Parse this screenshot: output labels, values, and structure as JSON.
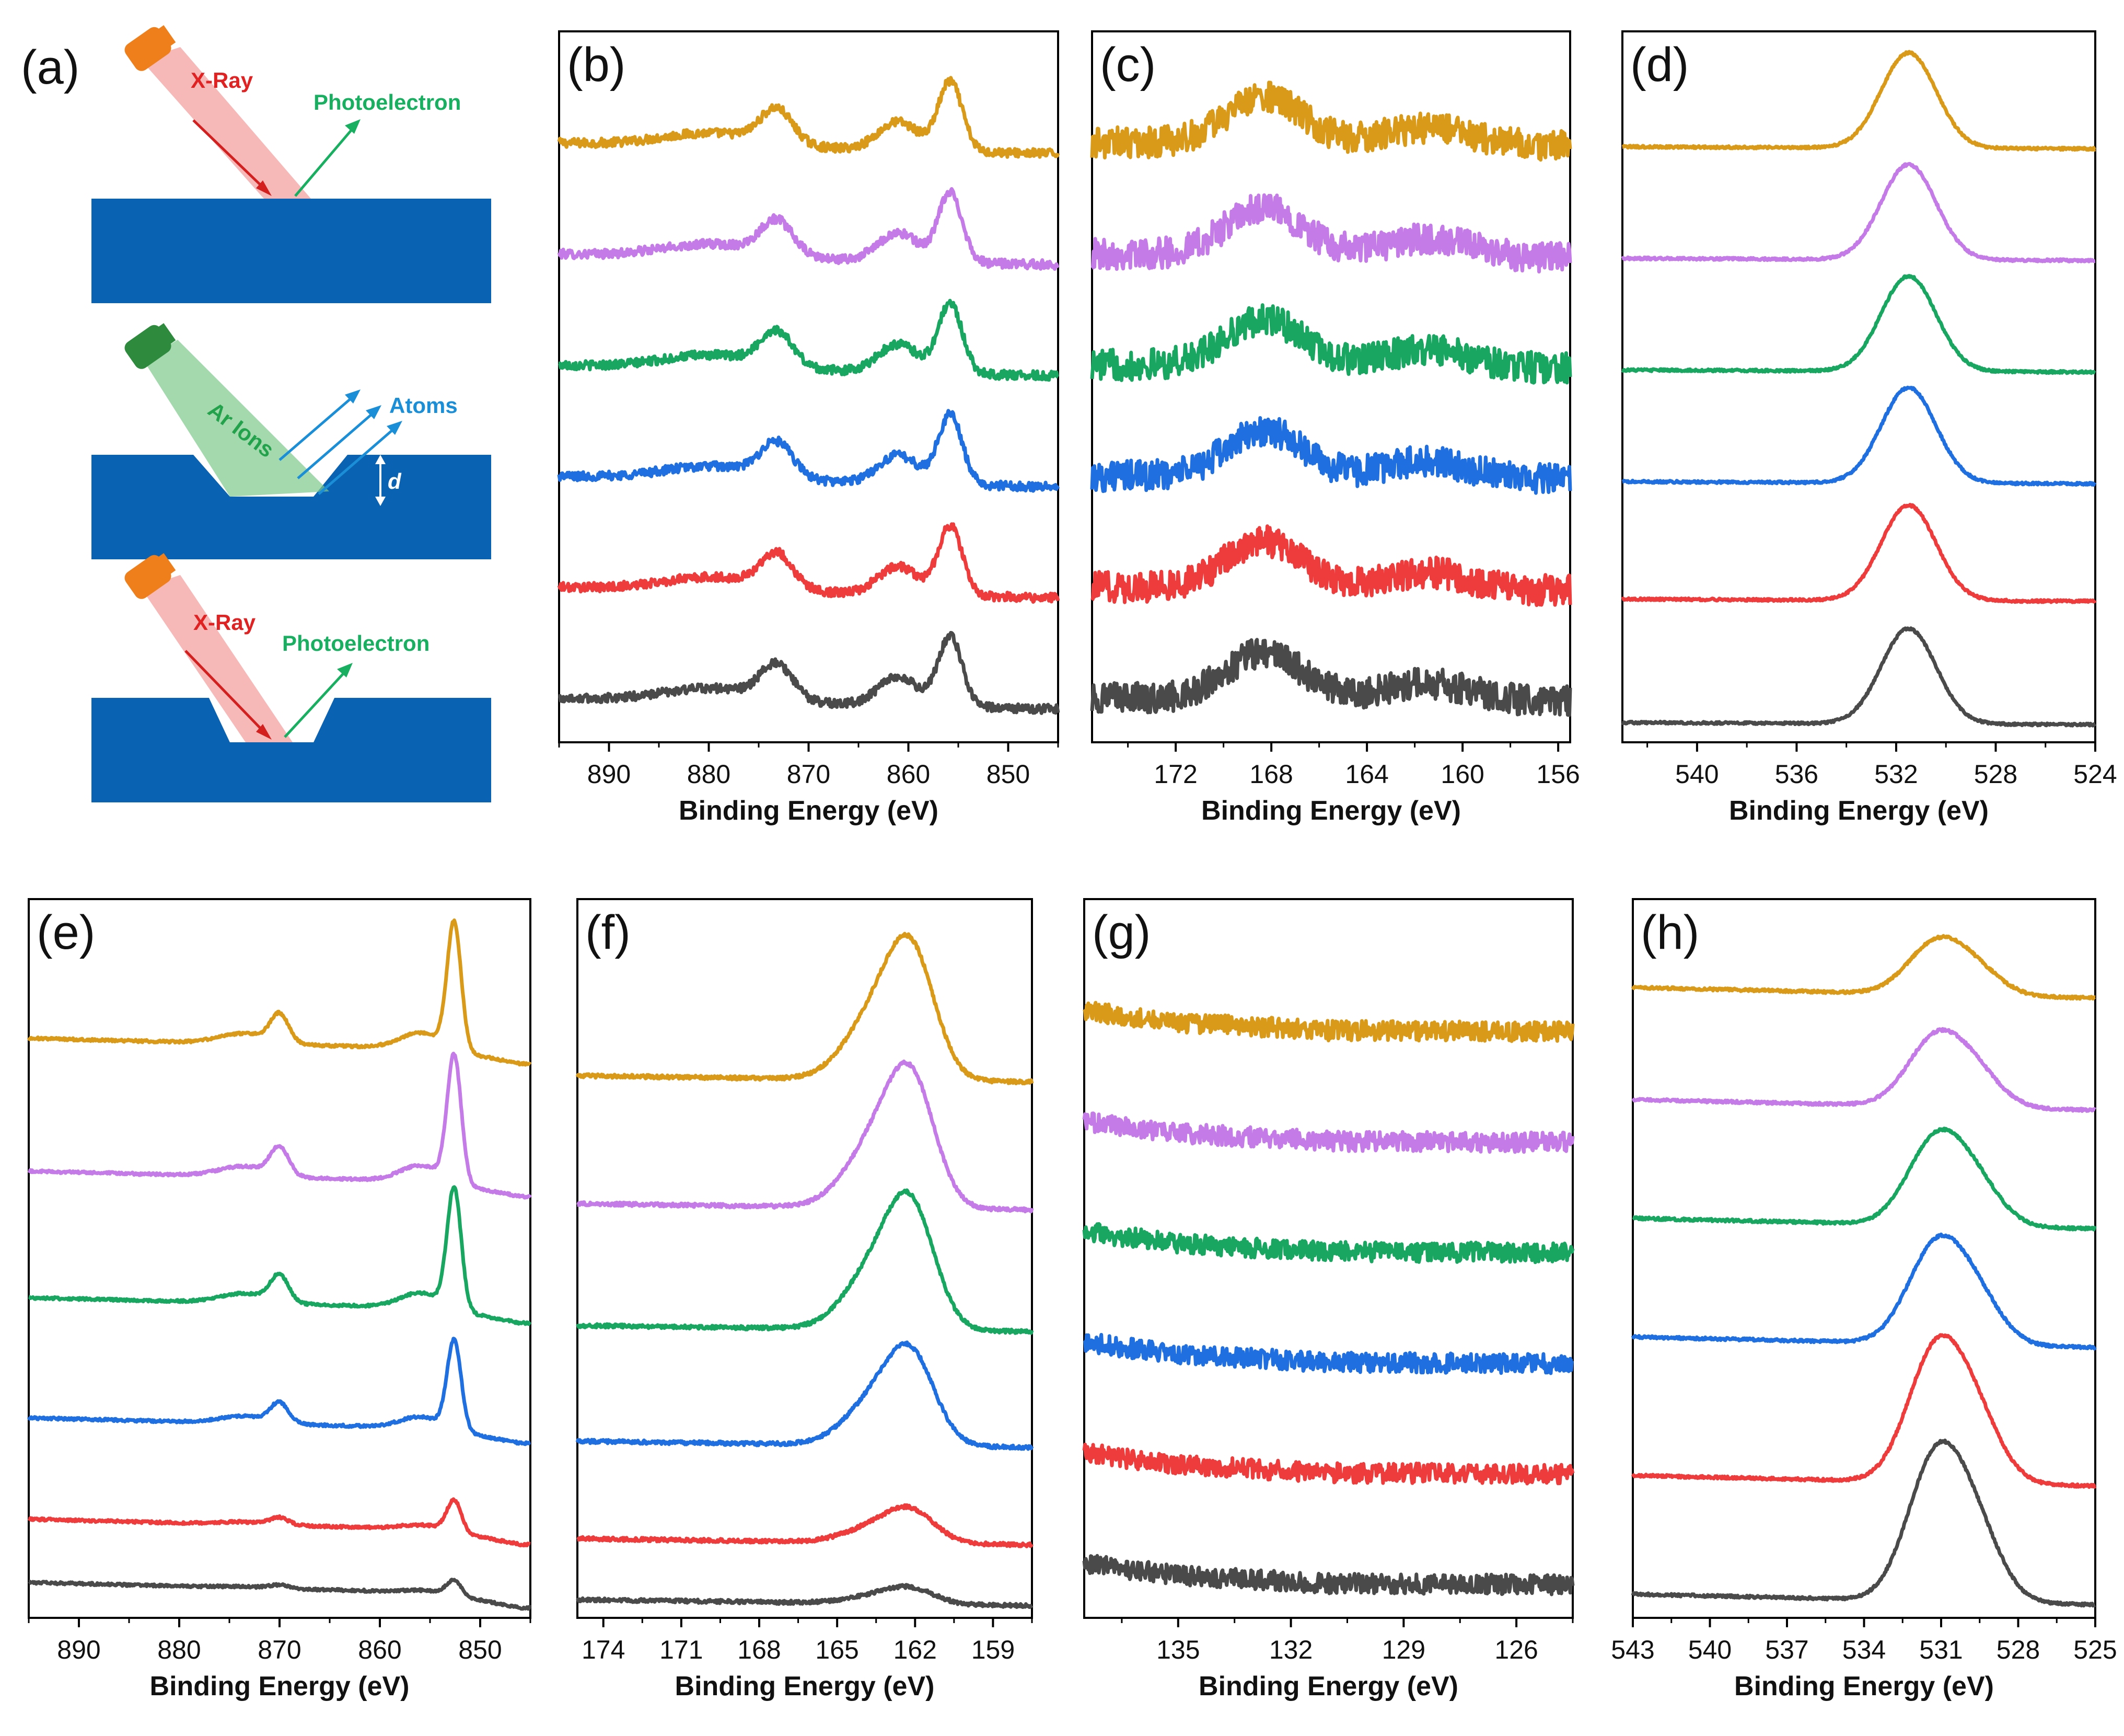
{
  "panel_a": {
    "label": "(a)",
    "xray_label_1": "X-Ray",
    "photoelectron_label_1": "Photoelectron",
    "ar_ions_label": "Ar Ions",
    "atoms_label": "Atoms",
    "depth_label": "d",
    "xray_label_2": "X-Ray",
    "photoelectron_label_2": "Photoelectron"
  },
  "colors": {
    "series": [
      "#d99a1a",
      "#c47be8",
      "#18a660",
      "#1f6fe0",
      "#ee3c3c",
      "#4a4a4a"
    ],
    "substrate": "#0a62b2",
    "xray": "#ee3030",
    "photoelectron": "#18b060",
    "ar_ions": "#2e8b3e",
    "atoms": "#1a8fd8"
  },
  "series_names": [
    "orange",
    "purple",
    "green",
    "blue",
    "red",
    "gray"
  ],
  "chart_data": [
    {
      "id": "b",
      "label": "(b)",
      "type": "line",
      "xlabel": "Binding Energy (eV)",
      "ylabel": "",
      "xlim": [
        895,
        845
      ],
      "xticks": [
        890,
        880,
        870,
        860,
        850
      ],
      "offsets": [
        5,
        4,
        3,
        2,
        1,
        0
      ],
      "amp": 0.8,
      "noise": 0.04,
      "ylim": [
        -0.3,
        6.1
      ],
      "baseline": [
        {
          "x": 895,
          "y": 0.12
        },
        {
          "x": 846,
          "y": 0.0
        }
      ],
      "peaks": [
        {
          "center": 879.5,
          "height": 0.15,
          "width": 5
        },
        {
          "center": 873.2,
          "height": 0.38,
          "width": 1.6
        },
        {
          "center": 861.0,
          "height": 0.32,
          "width": 2.0
        },
        {
          "center": 855.8,
          "height": 0.78,
          "width": 1.2
        }
      ],
      "noisy": false
    },
    {
      "id": "c",
      "label": "(c)",
      "type": "line",
      "xlabel": "Binding Energy (eV)",
      "ylabel": "",
      "xlim": [
        175.5,
        155.5
      ],
      "xticks": [
        172,
        168,
        164,
        160,
        156
      ],
      "offsets": [
        5,
        4,
        3,
        2,
        1,
        0
      ],
      "amp": 0.7,
      "noise": 0.14,
      "ylim": [
        -0.4,
        6.0
      ],
      "baseline": [
        {
          "x": 175.5,
          "y": 0.0
        },
        {
          "x": 155.5,
          "y": -0.05
        }
      ],
      "peaks": [
        {
          "center": 168.3,
          "height": 0.6,
          "width": 1.6
        },
        {
          "center": 161.5,
          "height": 0.22,
          "width": 1.8
        }
      ],
      "noisy": true
    },
    {
      "id": "d",
      "label": "(d)",
      "type": "line",
      "xlabel": "Binding Energy (eV)",
      "ylabel": "",
      "xlim": [
        543,
        524
      ],
      "xticks": [
        540,
        536,
        532,
        528,
        524
      ],
      "offsets": [
        5.05,
        4.1,
        3.15,
        2.2,
        1.2,
        0.15
      ],
      "amp": 0.9,
      "noise": 0.01,
      "ylim": [
        0.0,
        6.05
      ],
      "baseline": [
        {
          "x": 543,
          "y": 0.02
        },
        {
          "x": 524,
          "y": 0.0
        }
      ],
      "peaks": [
        {
          "center": 531.5,
          "height": 0.9,
          "width": 1.1
        }
      ],
      "noisy": false
    },
    {
      "id": "e",
      "label": "(e)",
      "type": "line",
      "xlabel": "Binding Energy (eV)",
      "ylabel": "",
      "xlim": [
        895,
        845
      ],
      "xticks": [
        890,
        880,
        870,
        860,
        850
      ],
      "offsets": [
        4.3,
        3.25,
        2.25,
        1.3,
        0.5,
        0.0
      ],
      "amp": 1.0,
      "noise": 0.01,
      "ylim": [
        -0.08,
        5.6
      ],
      "baseline": [
        {
          "x": 895,
          "y": 0.2
        },
        {
          "x": 854,
          "y": 0.12
        },
        {
          "x": 846,
          "y": 0.0
        }
      ],
      "peaks": [
        {
          "center": 873.5,
          "height": 0.08,
          "width": 2.5
        },
        {
          "center": 870.0,
          "height": 0.22,
          "width": 0.9
        },
        {
          "center": 856.0,
          "height": 0.12,
          "width": 2.0
        },
        {
          "center": 852.6,
          "height": 1.0,
          "width": 0.7
        }
      ],
      "noisy": false
    },
    {
      "id": "f",
      "label": "(f)",
      "type": "line",
      "xlabel": "Binding Energy (eV)",
      "ylabel": "",
      "xlim": [
        175,
        157.5
      ],
      "xticks": [
        174,
        171,
        168,
        165,
        162,
        159
      ],
      "offsets": [
        4.3,
        3.25,
        2.25,
        1.3,
        0.5,
        0.0
      ],
      "amp": 1.0,
      "noise": 0.015,
      "ylim": [
        -0.1,
        5.8
      ],
      "baseline": [
        {
          "x": 175,
          "y": 0.05
        },
        {
          "x": 157.5,
          "y": 0.0
        }
      ],
      "peaks": [
        {
          "center": 163.4,
          "height": 0.55,
          "width": 1.2
        },
        {
          "center": 162.1,
          "height": 0.85,
          "width": 0.9
        }
      ],
      "noisy": false
    },
    {
      "id": "g",
      "label": "(g)",
      "type": "line",
      "xlabel": "Binding Energy (eV)",
      "ylabel": "",
      "xlim": [
        137.5,
        124.5
      ],
      "xticks": [
        135,
        132,
        129,
        126
      ],
      "offsets": [
        5,
        4,
        3,
        2,
        1,
        0
      ],
      "amp": 0.55,
      "noise": 0.09,
      "ylim": [
        -0.3,
        6.2
      ],
      "baseline": [
        {
          "x": 137.5,
          "y": 0.35
        },
        {
          "x": 135,
          "y": 0.15
        },
        {
          "x": 131,
          "y": 0.02
        },
        {
          "x": 124.5,
          "y": 0.0
        }
      ],
      "peaks": [],
      "noisy": true
    },
    {
      "id": "h",
      "label": "(h)",
      "type": "line",
      "xlabel": "Binding Energy (eV)",
      "ylabel": "",
      "xlim": [
        543,
        525
      ],
      "xticks": [
        543,
        540,
        537,
        534,
        531,
        528,
        525
      ],
      "offsets": [
        4.6,
        3.75,
        2.85,
        1.95,
        0.9,
        0.0
      ],
      "amp": 1.0,
      "noise": 0.01,
      "ylim": [
        -0.1,
        5.35
      ],
      "baseline": [
        {
          "x": 543,
          "y": 0.08
        },
        {
          "x": 525,
          "y": 0.0
        }
      ],
      "peaks": [
        {
          "center": 531.2,
          "height": 0.85,
          "width": 1.1
        },
        {
          "center": 529.6,
          "height": 0.35,
          "width": 1.0
        }
      ],
      "noisy": false
    }
  ]
}
